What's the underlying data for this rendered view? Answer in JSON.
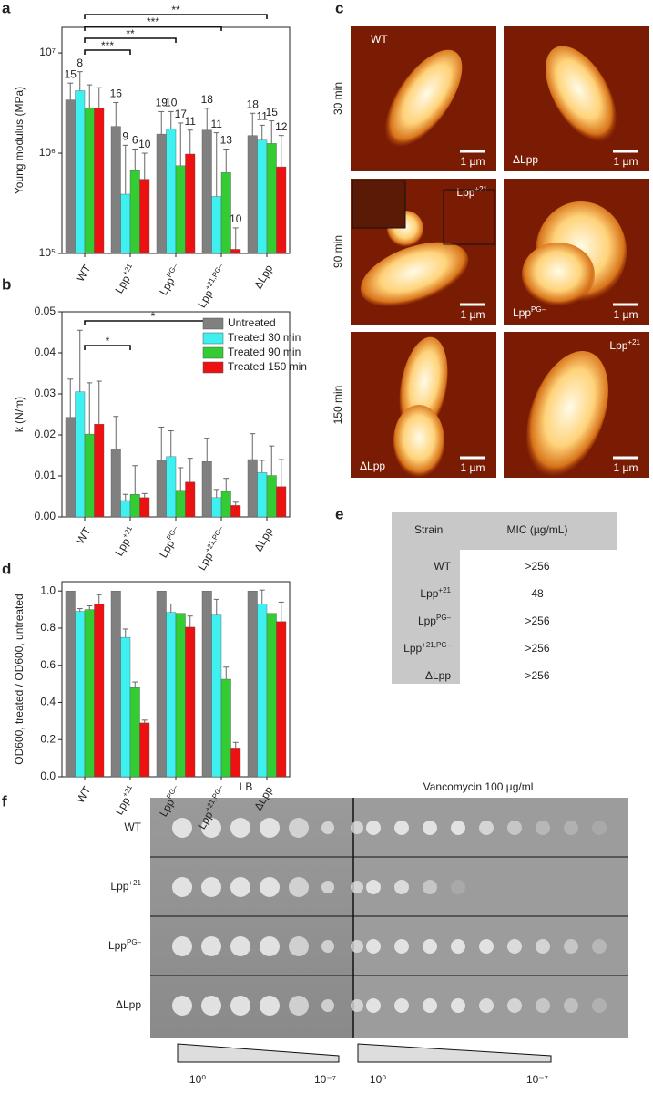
{
  "panel_labels": [
    "a",
    "b",
    "c",
    "d",
    "e",
    "f"
  ],
  "chart_data": [
    {
      "type": "bar",
      "ylabel": "Young modulus (MPa)",
      "log": true,
      "categories": [
        "WT",
        "Lpp+21",
        "LppPG–",
        "Lpp+21,PG–",
        "ΔLpp"
      ],
      "ylim": [
        100000,
        18000000
      ],
      "yticks": [
        {
          "value": 100000,
          "label": "10⁵"
        },
        {
          "value": 1000000,
          "label": "10⁶"
        },
        {
          "value": 10000000,
          "label": "10⁷"
        }
      ],
      "series": [
        {
          "color": "#808080",
          "values": [
            3400000,
            1850000,
            1550000,
            1700000,
            1500000
          ],
          "errors": [
            1600000,
            1350000,
            1050000,
            1100000,
            1000000
          ],
          "n": [
            15,
            16,
            19,
            18,
            18
          ]
        },
        {
          "color": "#3ff0f0",
          "values": [
            4200000,
            390000,
            1750000,
            370000,
            1350000
          ],
          "errors": [
            2300000,
            810000,
            850000,
            1230000,
            550000
          ],
          "n": [
            8,
            9,
            10,
            11,
            11
          ]
        },
        {
          "color": "#33cc33",
          "values": [
            2800000,
            670000,
            750000,
            640000,
            1250000
          ],
          "errors": [
            2000000,
            430000,
            1250000,
            460000,
            850000
          ],
          "n": [
            null,
            6,
            17,
            13,
            15
          ]
        },
        {
          "color": "#ee1111",
          "values": [
            2800000,
            550000,
            980000,
            110000,
            730000
          ],
          "errors": [
            1700000,
            450000,
            720000,
            70000,
            770000
          ],
          "n": [
            null,
            10,
            11,
            10,
            12
          ]
        }
      ],
      "significance": [
        {
          "from": 0,
          "to": 4,
          "label": "**"
        },
        {
          "from": 0,
          "to": 3,
          "label": "***"
        },
        {
          "from": 0,
          "to": 2,
          "label": "**"
        },
        {
          "from": 0,
          "to": 1,
          "label": "***"
        }
      ]
    },
    {
      "type": "bar",
      "ylabel": "k (N/m)",
      "categories": [
        "WT",
        "Lpp+21",
        "LppPG–",
        "Lpp+21,PG–",
        "ΔLpp"
      ],
      "ylim": [
        0,
        0.05
      ],
      "yticks": [
        {
          "value": 0,
          "label": "0.00"
        },
        {
          "value": 0.01,
          "label": "0.01"
        },
        {
          "value": 0.02,
          "label": "0.02"
        },
        {
          "value": 0.03,
          "label": "0.03"
        },
        {
          "value": 0.04,
          "label": "0.04"
        },
        {
          "value": 0.05,
          "label": "0.05"
        }
      ],
      "legend": "upper right",
      "series": [
        {
          "name": "Untreated",
          "color": "#808080",
          "values": [
            0.0243,
            0.0165,
            0.0139,
            0.0135,
            0.014
          ],
          "errors": [
            0.0093,
            0.008,
            0.008,
            0.0057,
            0.0063
          ]
        },
        {
          "name": "Treated 30 min",
          "color": "#3ff0f0",
          "values": [
            0.0305,
            0.004,
            0.0147,
            0.0047,
            0.0108
          ],
          "errors": [
            0.015,
            0.0015,
            0.0063,
            0.002,
            0.003
          ]
        },
        {
          "name": "Treated 90 min",
          "color": "#33cc33",
          "values": [
            0.0202,
            0.0055,
            0.0065,
            0.0062,
            0.0101
          ],
          "errors": [
            0.0125,
            0.007,
            0.0055,
            0.0032,
            0.0072
          ]
        },
        {
          "name": "Treated 150 min",
          "color": "#ee1111",
          "values": [
            0.0226,
            0.0047,
            0.0085,
            0.0028,
            0.0074
          ],
          "errors": [
            0.0105,
            0.001,
            0.0058,
            0.0008,
            0.0066
          ]
        }
      ],
      "significance": [
        {
          "from": 0,
          "to": 3,
          "label": "*"
        },
        {
          "from": 0,
          "to": 1,
          "label": "*"
        }
      ]
    },
    {
      "type": "bar",
      "ylabel": "OD600, treated / OD600, untreated",
      "categories": [
        "WT",
        "Lpp+21",
        "LppPG–",
        "Lpp+21,PG–",
        "ΔLpp"
      ],
      "ylim": [
        0,
        1.05
      ],
      "yticks": [
        {
          "value": 0,
          "label": "0.0"
        },
        {
          "value": 0.2,
          "label": "0.2"
        },
        {
          "value": 0.4,
          "label": "0.4"
        },
        {
          "value": 0.6,
          "label": "0.6"
        },
        {
          "value": 0.8,
          "label": "0.8"
        },
        {
          "value": 1,
          "label": "1.0"
        }
      ],
      "series": [
        {
          "color": "#808080",
          "values": [
            1,
            1,
            1,
            1,
            1
          ],
          "errors": [
            null,
            null,
            null,
            null,
            null
          ]
        },
        {
          "color": "#3ff0f0",
          "values": [
            0.89,
            0.75,
            0.885,
            0.87,
            0.93
          ],
          "errors": [
            0.015,
            0.045,
            0.045,
            0.085,
            0.075
          ]
        },
        {
          "color": "#33cc33",
          "values": [
            0.9,
            0.48,
            0.88,
            0.525,
            0.88
          ],
          "errors": [
            0.02,
            0.03,
            null,
            0.065,
            null
          ]
        },
        {
          "color": "#ee1111",
          "values": [
            0.93,
            0.29,
            0.805,
            0.155,
            0.835
          ],
          "errors": [
            0.05,
            0.015,
            0.06,
            0.03,
            0.105
          ]
        }
      ]
    }
  ],
  "afm": {
    "rows": [
      "30 min",
      "90 min",
      "150 min"
    ],
    "tiles": [
      [
        "WT",
        "ΔLpp"
      ],
      [
        "Lpp+21",
        "LppPG–"
      ],
      [
        "ΔLpp",
        "Lpp+21"
      ]
    ],
    "scale": "1 µm"
  },
  "mic_table": {
    "header": [
      "Strain",
      "MIC (µg/mL)"
    ],
    "rows": [
      [
        "WT",
        ">256"
      ],
      [
        "Lpp+21",
        "48"
      ],
      [
        "LppPG–",
        ">256"
      ],
      [
        "Lpp+21,PG–",
        ">256"
      ],
      [
        "ΔLpp",
        ">256"
      ]
    ]
  },
  "plates": {
    "media": [
      "LB",
      "Vancomycin 100 µg/ml"
    ],
    "rows": [
      "WT",
      "Lpp+21",
      "LppPG–",
      "ΔLpp"
    ],
    "dilution": [
      "10⁰",
      "10⁻⁷"
    ]
  }
}
